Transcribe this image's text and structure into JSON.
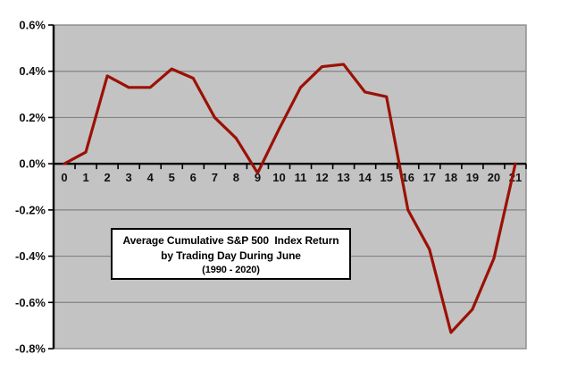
{
  "chart_data": {
    "type": "line",
    "title": "Average Cumulative S&P 500 Index Return by Trading Day During June (1990 - 2020)",
    "title_box": {
      "line1": "Average Cumulative S&P 500  Index Return",
      "line2": "by Trading Day During June",
      "line3": "(1990 - 2020)"
    },
    "xlabel": "",
    "ylabel": "",
    "categories": [
      "0",
      "1",
      "2",
      "3",
      "4",
      "5",
      "6",
      "7",
      "8",
      "9",
      "10",
      "11",
      "12",
      "13",
      "14",
      "15",
      "16",
      "17",
      "18",
      "19",
      "20",
      "21"
    ],
    "series": [
      {
        "name": "Average cumulative S&P 500 index return (%)",
        "values": [
          0.0,
          0.05,
          0.38,
          0.33,
          0.33,
          0.41,
          0.37,
          0.2,
          0.11,
          -0.04,
          0.15,
          0.33,
          0.42,
          0.43,
          0.31,
          0.29,
          -0.2,
          -0.37,
          -0.73,
          -0.63,
          -0.41,
          0.0
        ]
      }
    ],
    "ylim": [
      -0.8,
      0.6
    ],
    "ytick_step": 0.2,
    "ytick_labels": [
      "0.6%",
      "0.4%",
      "0.2%",
      "0.0%",
      "-0.2%",
      "-0.4%",
      "-0.6%",
      "-0.8%"
    ],
    "grid": "horizontal",
    "legend_position": "none",
    "colors": {
      "line": "#9B1106",
      "plot_background": "#C3C3C3",
      "gridline": "#838383",
      "axis": "#000000",
      "label_text": "#111111",
      "page_background": "#FFFFFF"
    }
  }
}
